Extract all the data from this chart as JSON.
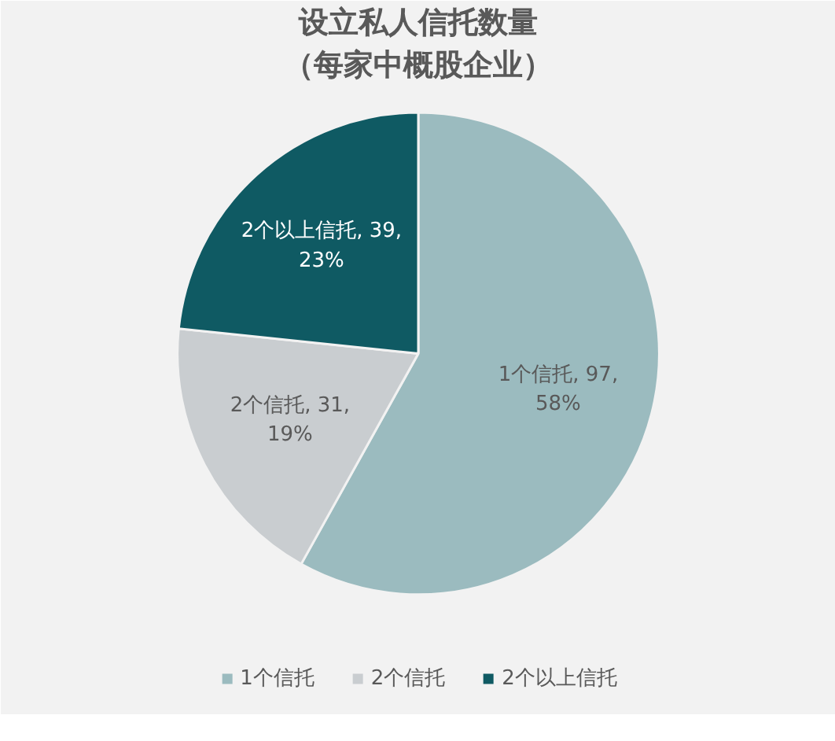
{
  "chart_data": {
    "type": "pie",
    "title": "设立私人信托数量",
    "subtitle": "（每家中概股企业）",
    "categories": [
      "1个信托",
      "2个信托",
      "2个以上信托"
    ],
    "values": [
      97,
      31,
      39
    ],
    "colors": [
      "#9bbbbf",
      "#c9cdd0",
      "#0f5a63"
    ],
    "value_labels": [
      "1个信托, 97, 58%",
      "2个信托, 31, 19%",
      "2个以上信托, 39, 23%"
    ],
    "legend": "bottom"
  }
}
